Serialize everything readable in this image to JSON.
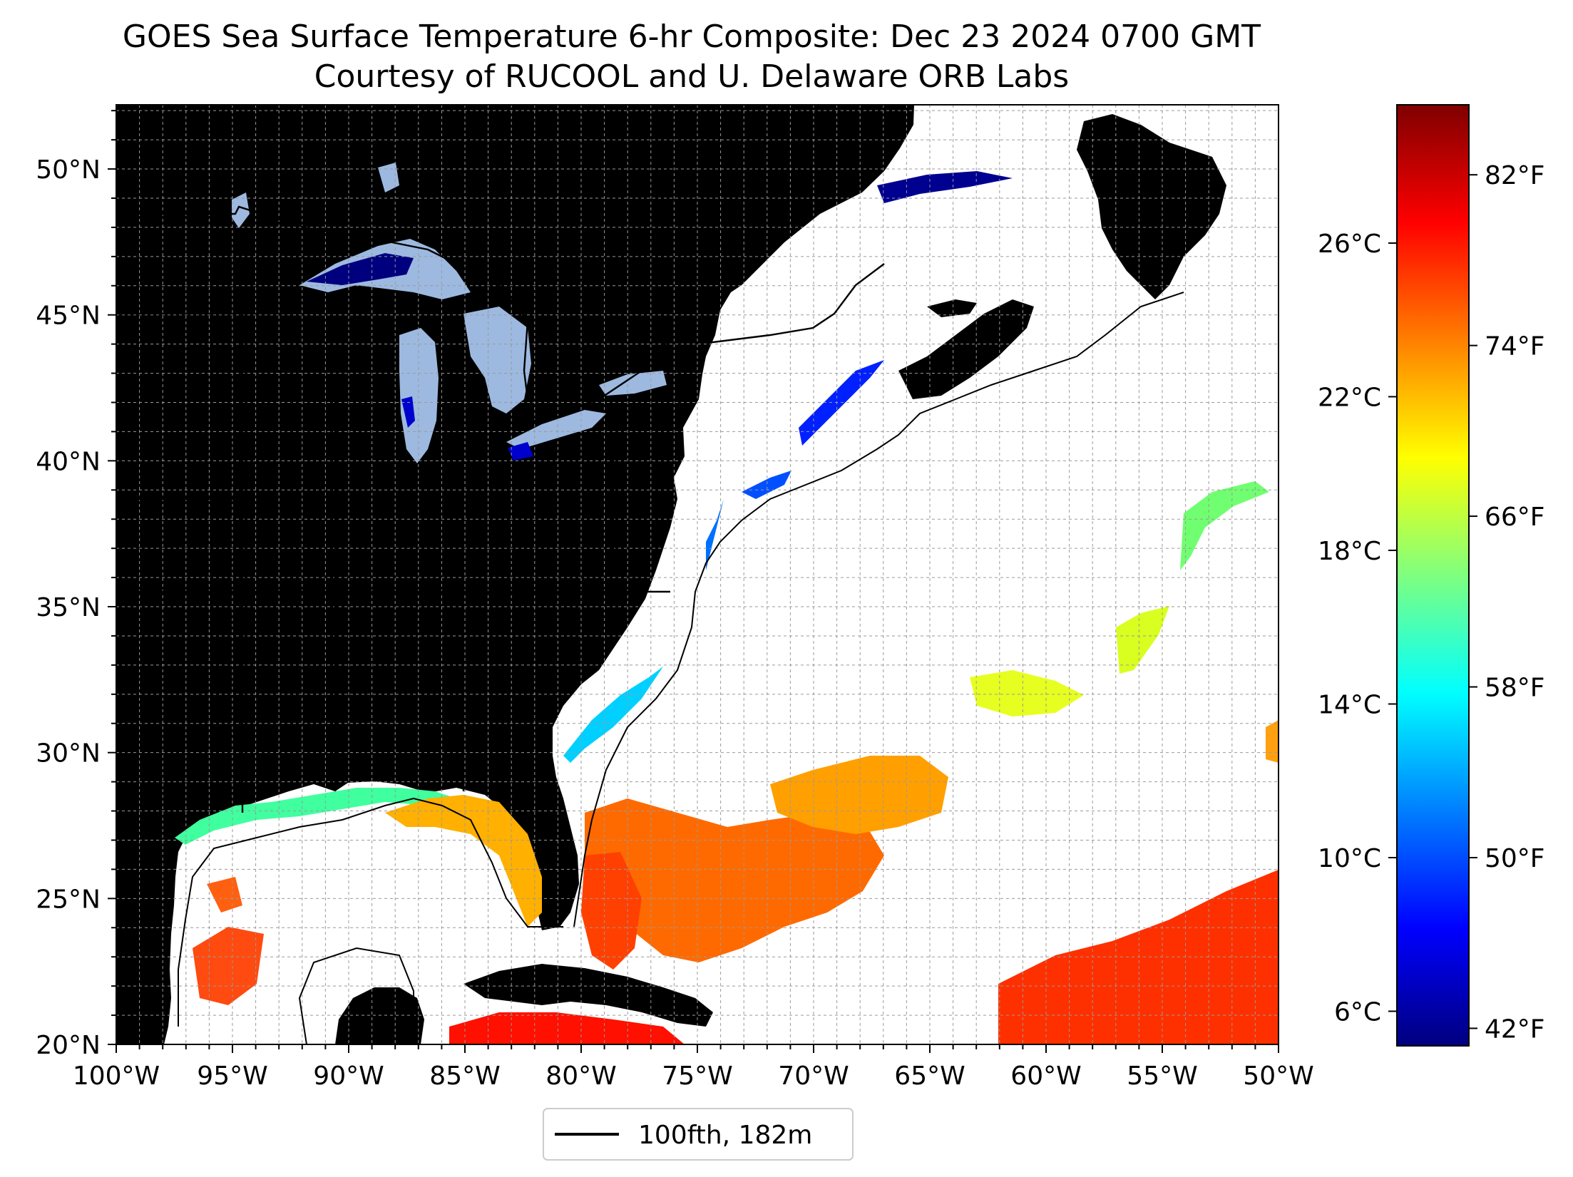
{
  "title": {
    "line1": "GOES Sea Surface Temperature 6-hr Composite: Dec 23 2024 0700 GMT",
    "line2": "Courtesy of RUCOOL and U. Delaware ORB Labs"
  },
  "map": {
    "extent": {
      "lon_min": -100,
      "lon_max": -50,
      "lat_min": 20,
      "lat_max": 52.2
    },
    "lat_ticks": [
      {
        "value": 50,
        "label": "50°N"
      },
      {
        "value": 45,
        "label": "45°N"
      },
      {
        "value": 40,
        "label": "40°N"
      },
      {
        "value": 35,
        "label": "35°N"
      },
      {
        "value": 30,
        "label": "30°N"
      },
      {
        "value": 25,
        "label": "25°N"
      },
      {
        "value": 20,
        "label": "20°N"
      }
    ],
    "lon_ticks": [
      {
        "value": -100,
        "label": "100°W"
      },
      {
        "value": -95,
        "label": "95°W"
      },
      {
        "value": -90,
        "label": "90°W"
      },
      {
        "value": -85,
        "label": "85°W"
      },
      {
        "value": -80,
        "label": "80°W"
      },
      {
        "value": -75,
        "label": "75°W"
      },
      {
        "value": -70,
        "label": "70°W"
      },
      {
        "value": -65,
        "label": "65°W"
      },
      {
        "value": -60,
        "label": "60°W"
      },
      {
        "value": -55,
        "label": "55°W"
      },
      {
        "value": -50,
        "label": "50°W"
      }
    ],
    "grid": true,
    "land_color": "#d2b48c",
    "lake_color": "#9db9e0",
    "contour_color": "#000000"
  },
  "legend": {
    "label": "100fth, 182m",
    "placement": "bottom-center"
  },
  "colorbar": {
    "celsius_range": [
      5.1,
      29.6
    ],
    "celsius_ticks": [
      {
        "value": 6,
        "label": "6°C"
      },
      {
        "value": 10,
        "label": "10°C"
      },
      {
        "value": 14,
        "label": "14°C"
      },
      {
        "value": 18,
        "label": "18°C"
      },
      {
        "value": 22,
        "label": "22°C"
      },
      {
        "value": 26,
        "label": "26°C"
      }
    ],
    "fahrenheit_ticks": [
      {
        "value": 42,
        "label": "42°F"
      },
      {
        "value": 50,
        "label": "50°F"
      },
      {
        "value": 58,
        "label": "58°F"
      },
      {
        "value": 66,
        "label": "66°F"
      },
      {
        "value": 74,
        "label": "74°F"
      },
      {
        "value": 82,
        "label": "82°F"
      }
    ],
    "colormap": [
      "#00007f",
      "#0000ff",
      "#007fff",
      "#00ffff",
      "#7fff7f",
      "#ffff00",
      "#ff7f00",
      "#ff0000",
      "#7f0000"
    ]
  }
}
